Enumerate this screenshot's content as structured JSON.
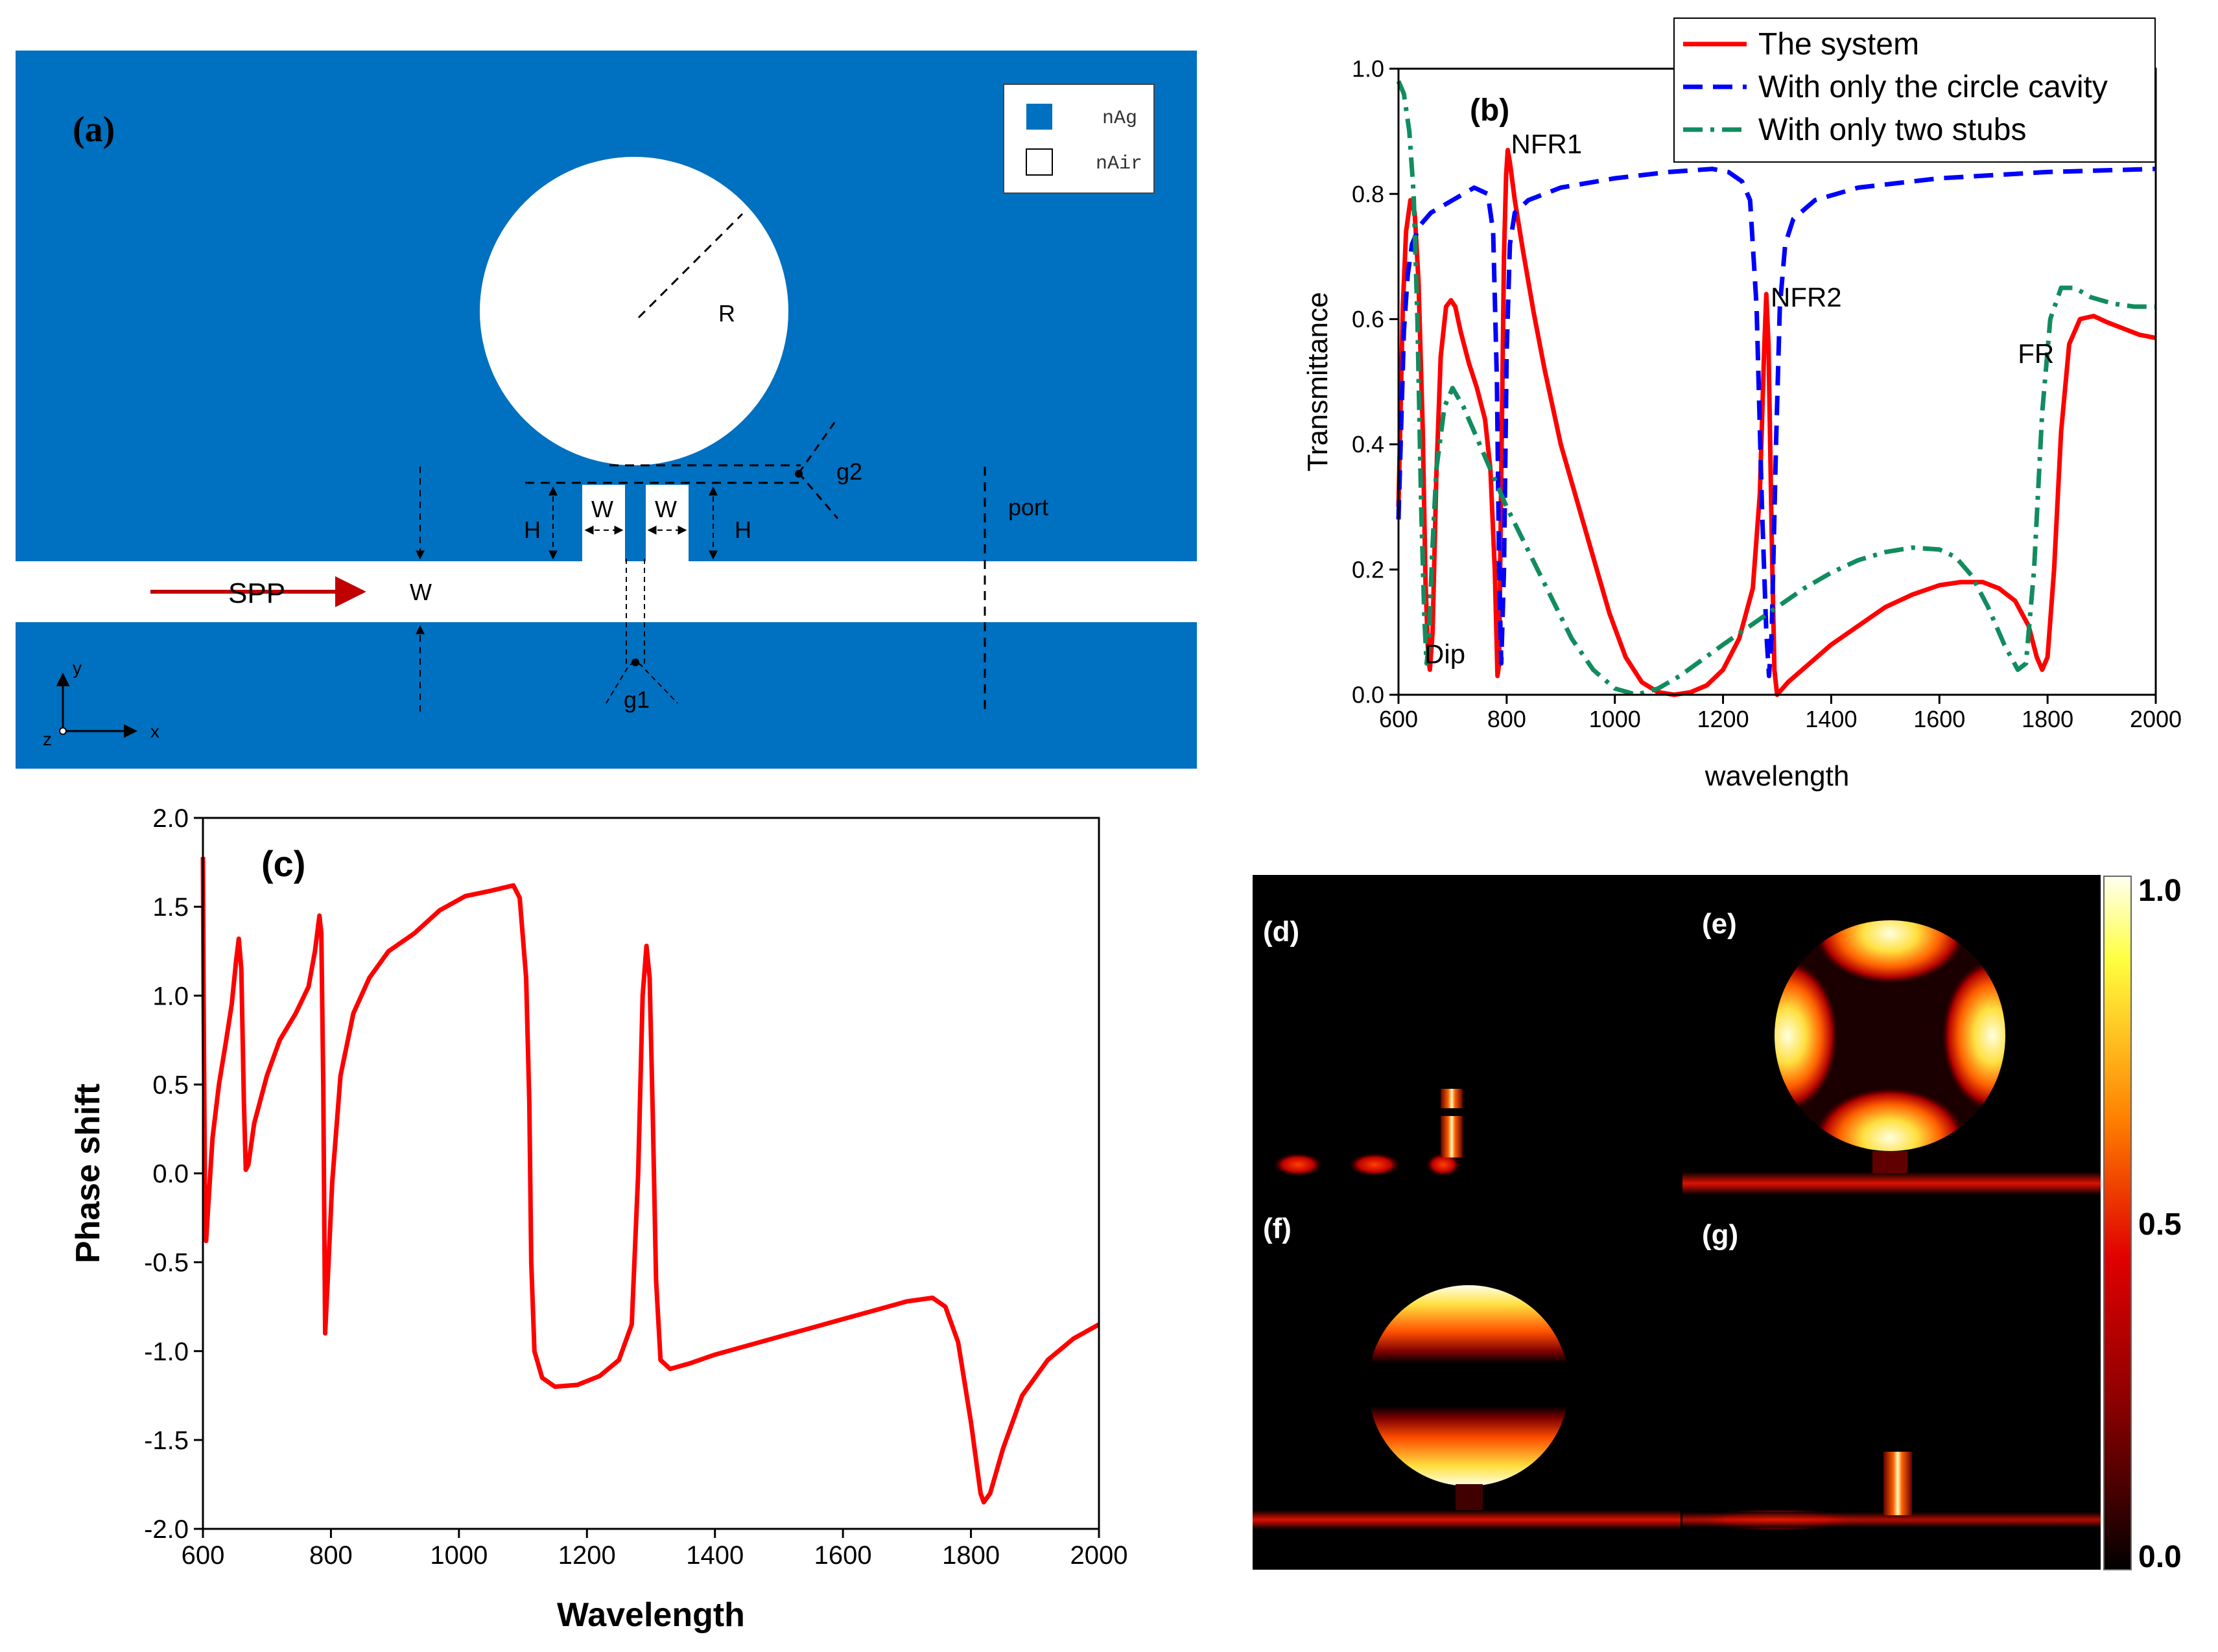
{
  "colors": {
    "silver": "#0070C0",
    "air": "#FFFFFF",
    "red": "#FF0000",
    "blue": "#0000FF",
    "green": "#118C5E",
    "dark_red": "#C00000"
  },
  "panel_a": {
    "label": "(a)",
    "legend": {
      "ag": "nAg",
      "air": "nAir"
    },
    "labels": {
      "R": "R",
      "g2": "g2",
      "W_stub_left": "W",
      "W_stub_right": "W",
      "H_left": "H",
      "H_right": "H",
      "port": "port",
      "SPP": "SPP",
      "W_waveguide": "W",
      "g1": "g1",
      "axis_y": "y",
      "axis_x": "x",
      "axis_z": "z"
    }
  },
  "chart_data": [
    {
      "id": "b",
      "type": "line",
      "panel_label": "(b)",
      "xlabel": "wavelength",
      "ylabel": "Transmittance",
      "xlim": [
        600,
        2000
      ],
      "ylim": [
        0,
        1.0
      ],
      "xticks": [
        600,
        800,
        1000,
        1200,
        1400,
        1600,
        1800,
        2000
      ],
      "yticks": [
        0.0,
        0.2,
        0.4,
        0.6,
        0.8,
        1.0
      ],
      "ytick_labels": [
        "0.0",
        "0.2",
        "0.4",
        "0.6",
        "0.8",
        "1.0"
      ],
      "legend": [
        "The system",
        "With only the circle cavity",
        "With only two stubs"
      ],
      "annotations": [
        {
          "text": "NFR1",
          "x": 808,
          "y": 0.865
        },
        {
          "text": "NFR2",
          "x": 1288,
          "y": 0.62
        },
        {
          "text": "FR",
          "x": 1745,
          "y": 0.53
        },
        {
          "text": "Dip",
          "x": 648,
          "y": 0.05
        }
      ],
      "series": [
        {
          "name": "The system",
          "color": "#FF0000",
          "dash": "solid",
          "points": [
            [
              600,
              0.3
            ],
            [
              608,
              0.62
            ],
            [
              614,
              0.74
            ],
            [
              622,
              0.79
            ],
            [
              630,
              0.77
            ],
            [
              637,
              0.66
            ],
            [
              645,
              0.42
            ],
            [
              650,
              0.18
            ],
            [
              655,
              0.06
            ],
            [
              658,
              0.04
            ],
            [
              663,
              0.1
            ],
            [
              670,
              0.35
            ],
            [
              678,
              0.54
            ],
            [
              688,
              0.62
            ],
            [
              697,
              0.63
            ],
            [
              705,
              0.62
            ],
            [
              715,
              0.58
            ],
            [
              730,
              0.53
            ],
            [
              745,
              0.49
            ],
            [
              760,
              0.44
            ],
            [
              770,
              0.36
            ],
            [
              778,
              0.2
            ],
            [
              783,
              0.03
            ],
            [
              786,
              0.05
            ],
            [
              790,
              0.35
            ],
            [
              795,
              0.7
            ],
            [
              799,
              0.83
            ],
            [
              802,
              0.87
            ],
            [
              806,
              0.85
            ],
            [
              815,
              0.79
            ],
            [
              830,
              0.71
            ],
            [
              850,
              0.61
            ],
            [
              870,
              0.52
            ],
            [
              900,
              0.4
            ],
            [
              930,
              0.31
            ],
            [
              960,
              0.22
            ],
            [
              990,
              0.13
            ],
            [
              1020,
              0.06
            ],
            [
              1050,
              0.02
            ],
            [
              1080,
              0.004
            ],
            [
              1110,
              0.0
            ],
            [
              1140,
              0.004
            ],
            [
              1170,
              0.015
            ],
            [
              1200,
              0.04
            ],
            [
              1230,
              0.09
            ],
            [
              1255,
              0.17
            ],
            [
              1268,
              0.32
            ],
            [
              1276,
              0.55
            ],
            [
              1280,
              0.64
            ],
            [
              1284,
              0.56
            ],
            [
              1290,
              0.25
            ],
            [
              1295,
              0.04
            ],
            [
              1300,
              0.0
            ],
            [
              1320,
              0.02
            ],
            [
              1360,
              0.05
            ],
            [
              1400,
              0.08
            ],
            [
              1450,
              0.11
            ],
            [
              1500,
              0.14
            ],
            [
              1550,
              0.16
            ],
            [
              1600,
              0.175
            ],
            [
              1640,
              0.18
            ],
            [
              1680,
              0.18
            ],
            [
              1710,
              0.17
            ],
            [
              1740,
              0.15
            ],
            [
              1765,
              0.11
            ],
            [
              1780,
              0.06
            ],
            [
              1790,
              0.04
            ],
            [
              1800,
              0.06
            ],
            [
              1812,
              0.2
            ],
            [
              1825,
              0.42
            ],
            [
              1840,
              0.56
            ],
            [
              1860,
              0.6
            ],
            [
              1885,
              0.605
            ],
            [
              1910,
              0.595
            ],
            [
              1940,
              0.585
            ],
            [
              1970,
              0.575
            ],
            [
              2000,
              0.57
            ]
          ]
        },
        {
          "name": "With only the circle cavity",
          "color": "#0000FF",
          "dash": "dashed",
          "points": [
            [
              600,
              0.28
            ],
            [
              610,
              0.58
            ],
            [
              617,
              0.67
            ],
            [
              625,
              0.72
            ],
            [
              640,
              0.75
            ],
            [
              660,
              0.77
            ],
            [
              700,
              0.79
            ],
            [
              740,
              0.81
            ],
            [
              765,
              0.8
            ],
            [
              775,
              0.74
            ],
            [
              782,
              0.5
            ],
            [
              786,
              0.2
            ],
            [
              790,
              0.05
            ],
            [
              795,
              0.2
            ],
            [
              800,
              0.55
            ],
            [
              806,
              0.72
            ],
            [
              815,
              0.77
            ],
            [
              840,
              0.79
            ],
            [
              900,
              0.81
            ],
            [
              1000,
              0.825
            ],
            [
              1100,
              0.835
            ],
            [
              1180,
              0.84
            ],
            [
              1210,
              0.835
            ],
            [
              1235,
              0.82
            ],
            [
              1250,
              0.79
            ],
            [
              1262,
              0.62
            ],
            [
              1272,
              0.3
            ],
            [
              1280,
              0.1
            ],
            [
              1285,
              0.03
            ],
            [
              1290,
              0.1
            ],
            [
              1298,
              0.4
            ],
            [
              1305,
              0.62
            ],
            [
              1315,
              0.72
            ],
            [
              1330,
              0.76
            ],
            [
              1370,
              0.79
            ],
            [
              1450,
              0.81
            ],
            [
              1600,
              0.825
            ],
            [
              1800,
              0.835
            ],
            [
              2000,
              0.84
            ]
          ]
        },
        {
          "name": "With only two stubs",
          "color": "#118C5E",
          "dash": "dashdot",
          "points": [
            [
              600,
              0.98
            ],
            [
              610,
              0.96
            ],
            [
              620,
              0.9
            ],
            [
              628,
              0.8
            ],
            [
              635,
              0.6
            ],
            [
              642,
              0.3
            ],
            [
              648,
              0.12
            ],
            [
              652,
              0.05
            ],
            [
              656,
              0.08
            ],
            [
              662,
              0.22
            ],
            [
              670,
              0.36
            ],
            [
              685,
              0.46
            ],
            [
              700,
              0.49
            ],
            [
              720,
              0.46
            ],
            [
              745,
              0.41
            ],
            [
              770,
              0.36
            ],
            [
              800,
              0.3
            ],
            [
              840,
              0.23
            ],
            [
              880,
              0.16
            ],
            [
              920,
              0.09
            ],
            [
              960,
              0.04
            ],
            [
              1000,
              0.01
            ],
            [
              1040,
              0.0
            ],
            [
              1080,
              0.01
            ],
            [
              1120,
              0.03
            ],
            [
              1160,
              0.055
            ],
            [
              1200,
              0.08
            ],
            [
              1250,
              0.11
            ],
            [
              1300,
              0.14
            ],
            [
              1350,
              0.17
            ],
            [
              1400,
              0.195
            ],
            [
              1450,
              0.215
            ],
            [
              1500,
              0.228
            ],
            [
              1550,
              0.235
            ],
            [
              1600,
              0.232
            ],
            [
              1630,
              0.22
            ],
            [
              1660,
              0.19
            ],
            [
              1690,
              0.14
            ],
            [
              1720,
              0.08
            ],
            [
              1745,
              0.04
            ],
            [
              1760,
              0.05
            ],
            [
              1775,
              0.2
            ],
            [
              1790,
              0.45
            ],
            [
              1805,
              0.6
            ],
            [
              1825,
              0.65
            ],
            [
              1850,
              0.65
            ],
            [
              1880,
              0.635
            ],
            [
              1920,
              0.625
            ],
            [
              1960,
              0.62
            ],
            [
              2000,
              0.62
            ]
          ]
        }
      ]
    },
    {
      "id": "c",
      "type": "line",
      "panel_label": "(c)",
      "xlabel": "Wavelength",
      "ylabel": "Phase shift",
      "xlim": [
        600,
        2000
      ],
      "ylim": [
        -2.0,
        2.0
      ],
      "xticks": [
        600,
        800,
        1000,
        1200,
        1400,
        1600,
        1800,
        2000
      ],
      "yticks": [
        -2.0,
        -1.5,
        -1.0,
        -0.5,
        0.0,
        0.5,
        1.0,
        1.5,
        2.0
      ],
      "ytick_labels": [
        "-2.0",
        "-1.5",
        "-1.0",
        "-0.5",
        "0.0",
        "0.5",
        "1.0",
        "1.5",
        "2.0"
      ],
      "series": [
        {
          "name": "Phase shift",
          "color": "#FF0000",
          "dash": "solid",
          "points": [
            [
              600,
              1.78
            ],
            [
              601,
              1.0
            ],
            [
              603,
              -0.05
            ],
            [
              605,
              -0.38
            ],
            [
              608,
              -0.2
            ],
            [
              615,
              0.2
            ],
            [
              625,
              0.5
            ],
            [
              635,
              0.72
            ],
            [
              645,
              0.95
            ],
            [
              652,
              1.2
            ],
            [
              656,
              1.32
            ],
            [
              660,
              1.15
            ],
            [
              664,
              0.4
            ],
            [
              667,
              0.02
            ],
            [
              671,
              0.05
            ],
            [
              680,
              0.28
            ],
            [
              700,
              0.55
            ],
            [
              720,
              0.75
            ],
            [
              745,
              0.9
            ],
            [
              765,
              1.05
            ],
            [
              775,
              1.25
            ],
            [
              782,
              1.45
            ],
            [
              785,
              1.35
            ],
            [
              788,
              0.5
            ],
            [
              791,
              -0.9
            ],
            [
              795,
              -0.6
            ],
            [
              802,
              -0.05
            ],
            [
              815,
              0.55
            ],
            [
              835,
              0.9
            ],
            [
              860,
              1.1
            ],
            [
              890,
              1.25
            ],
            [
              930,
              1.35
            ],
            [
              970,
              1.48
            ],
            [
              1010,
              1.56
            ],
            [
              1050,
              1.59
            ],
            [
              1085,
              1.62
            ],
            [
              1095,
              1.55
            ],
            [
              1105,
              1.1
            ],
            [
              1110,
              0.4
            ],
            [
              1113,
              -0.5
            ],
            [
              1118,
              -1.0
            ],
            [
              1130,
              -1.15
            ],
            [
              1150,
              -1.2
            ],
            [
              1185,
              -1.19
            ],
            [
              1220,
              -1.14
            ],
            [
              1250,
              -1.05
            ],
            [
              1270,
              -0.85
            ],
            [
              1280,
              0.0
            ],
            [
              1287,
              1.0
            ],
            [
              1293,
              1.28
            ],
            [
              1298,
              1.1
            ],
            [
              1303,
              0.3
            ],
            [
              1308,
              -0.6
            ],
            [
              1315,
              -1.05
            ],
            [
              1330,
              -1.1
            ],
            [
              1360,
              -1.07
            ],
            [
              1400,
              -1.02
            ],
            [
              1450,
              -0.97
            ],
            [
              1500,
              -0.92
            ],
            [
              1550,
              -0.87
            ],
            [
              1600,
              -0.82
            ],
            [
              1650,
              -0.77
            ],
            [
              1700,
              -0.72
            ],
            [
              1740,
              -0.7
            ],
            [
              1760,
              -0.75
            ],
            [
              1780,
              -0.95
            ],
            [
              1800,
              -1.4
            ],
            [
              1815,
              -1.8
            ],
            [
              1820,
              -1.85
            ],
            [
              1830,
              -1.8
            ],
            [
              1850,
              -1.55
            ],
            [
              1880,
              -1.25
            ],
            [
              1920,
              -1.05
            ],
            [
              1960,
              -0.93
            ],
            [
              2000,
              -0.85
            ]
          ]
        }
      ]
    },
    {
      "id": "field-maps",
      "type": "heatmap",
      "panels": [
        "(d)",
        "(e)",
        "(f)",
        "(g)"
      ],
      "colorbar": {
        "ticks": [
          "1.0",
          "0.5",
          "0.0"
        ],
        "colors": [
          "#FFFFF0",
          "#FFFF40",
          "#FF8000",
          "#E00000",
          "#900000",
          "#400000",
          "#000000"
        ]
      }
    }
  ]
}
